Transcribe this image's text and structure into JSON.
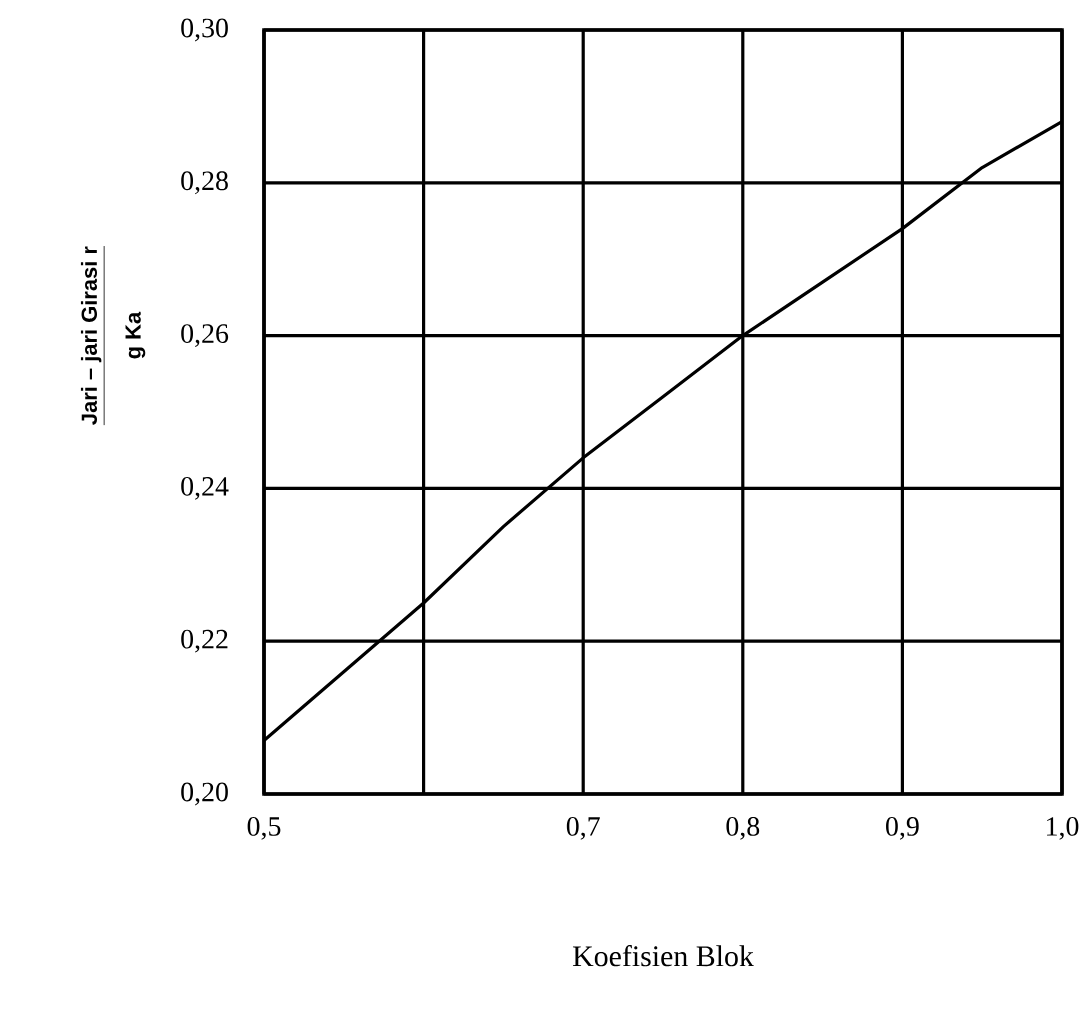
{
  "chart_data": {
    "type": "line",
    "xlabel": "Koefisien Blok",
    "ylabel": "Jari – jari Girasi r",
    "annotations": [
      "g Ka"
    ],
    "xlim": [
      0.5,
      1.0
    ],
    "ylim": [
      0.2,
      0.3
    ],
    "xticks": [
      {
        "value": 0.5,
        "label": "0,5"
      },
      {
        "value": 0.6,
        "label": null
      },
      {
        "value": 0.7,
        "label": "0,7"
      },
      {
        "value": 0.8,
        "label": "0,8"
      },
      {
        "value": 0.9,
        "label": "0,9"
      },
      {
        "value": 1.0,
        "label": "1,0"
      }
    ],
    "yticks": [
      {
        "value": 0.2,
        "label": "0,20"
      },
      {
        "value": 0.22,
        "label": "0,22"
      },
      {
        "value": 0.24,
        "label": "0,24"
      },
      {
        "value": 0.26,
        "label": "0,26"
      },
      {
        "value": 0.28,
        "label": "0,28"
      },
      {
        "value": 0.3,
        "label": "0,30"
      }
    ],
    "grid": true,
    "marker": "none",
    "line_style": "solid",
    "series": [
      {
        "color": "#000000",
        "x": [
          0.5,
          0.55,
          0.6,
          0.65,
          0.7,
          0.75,
          0.8,
          0.85,
          0.9,
          0.95,
          1.0
        ],
        "values": [
          0.207,
          0.216,
          0.225,
          0.235,
          0.244,
          0.252,
          0.26,
          0.267,
          0.274,
          0.282,
          0.288
        ]
      }
    ]
  }
}
